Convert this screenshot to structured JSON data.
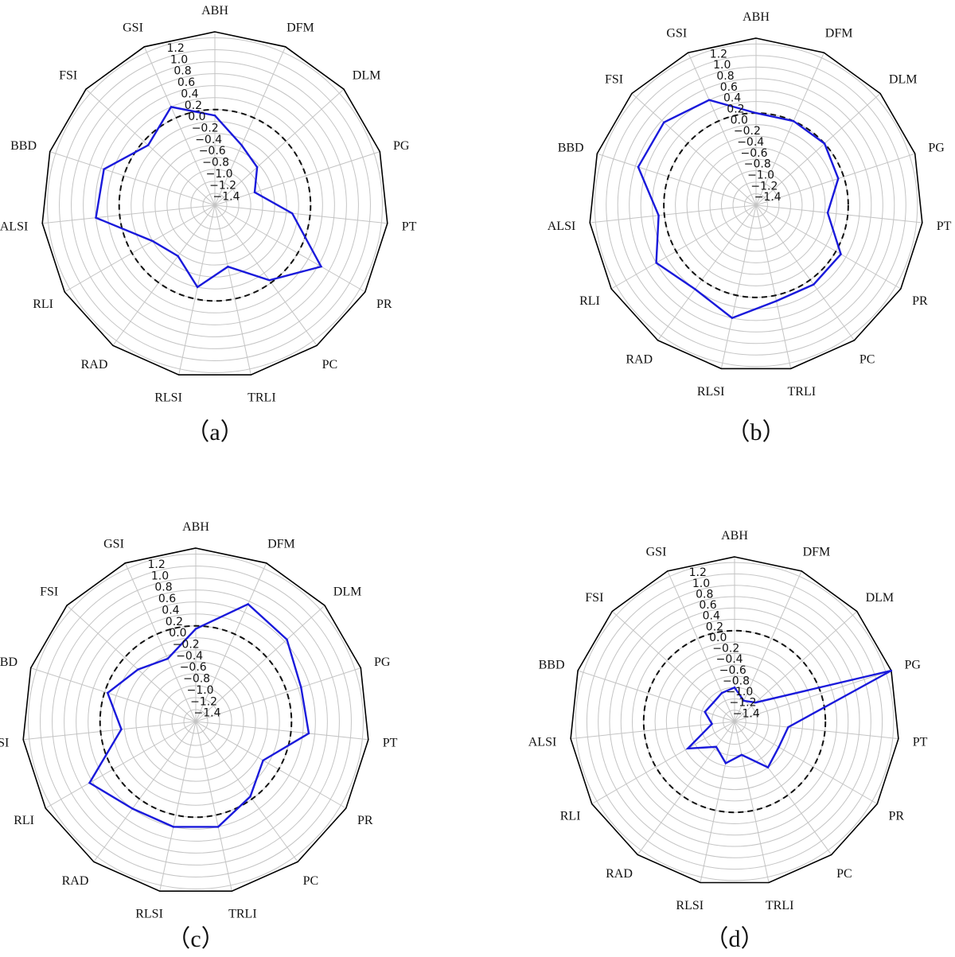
{
  "categories": [
    "ABH",
    "DFM",
    "DLM",
    "PG",
    "PT",
    "PR",
    "PC",
    "TRLI",
    "RLSI",
    "RAD",
    "RLI",
    "ALSI",
    "BBD",
    "FSI",
    "GSI"
  ],
  "radial_ticks": [
    "1.2",
    "1.0",
    "0.8",
    "0.6",
    "0.4",
    "0.2",
    "0.0",
    "−0.2",
    "−0.4",
    "−0.6",
    "−0.8",
    "−1.0",
    "−1.2",
    "−1.4"
  ],
  "series_color": "#1a1adb",
  "chart_data": [
    {
      "type": "radar",
      "panel_label": "（a）",
      "rlim": [
        -1.6,
        1.3
      ],
      "reference_circle": 0.0,
      "categories": [
        "ABH",
        "DFM",
        "DLM",
        "PG",
        "PT",
        "PR",
        "PC",
        "TRLI",
        "RLSI",
        "RAD",
        "RLI",
        "ALSI",
        "BBD",
        "FSI",
        "GSI"
      ],
      "values": [
        -0.1,
        -0.5,
        -0.65,
        -0.9,
        -0.3,
        0.45,
        -0.05,
        -0.55,
        -0.2,
        -0.55,
        -0.4,
        0.4,
        0.35,
        -0.1,
        0.2
      ]
    },
    {
      "type": "radar",
      "panel_label": "（b）",
      "rlim": [
        -1.6,
        1.3
      ],
      "reference_circle": 0.0,
      "categories": [
        "ABH",
        "DFM",
        "DLM",
        "PG",
        "PT",
        "PR",
        "PC",
        "TRLI",
        "RLSI",
        "RAD",
        "RLI",
        "ALSI",
        "BBD",
        "FSI",
        "GSI"
      ],
      "values": [
        0.0,
        0.0,
        0.0,
        -0.1,
        -0.35,
        0.1,
        0.1,
        0.1,
        0.4,
        0.2,
        0.4,
        0.1,
        0.55,
        0.55,
        0.4
      ]
    },
    {
      "type": "radar",
      "panel_label": "（c）",
      "rlim": [
        -1.6,
        1.3
      ],
      "reference_circle": 0.0,
      "categories": [
        "ABH",
        "DFM",
        "DLM",
        "PG",
        "PT",
        "PR",
        "PC",
        "TRLI",
        "RLSI",
        "RAD",
        "RLI",
        "ALSI",
        "BBD",
        "FSI",
        "GSI"
      ],
      "values": [
        -0.05,
        0.55,
        0.45,
        0.25,
        0.3,
        -0.3,
        -0.05,
        0.2,
        0.2,
        0.2,
        0.45,
        -0.35,
        -0.05,
        -0.3,
        -0.45
      ]
    },
    {
      "type": "radar",
      "panel_label": "（d）",
      "rlim": [
        -1.6,
        1.3
      ],
      "reference_circle": 0.0,
      "categories": [
        "ABH",
        "DFM",
        "DLM",
        "PG",
        "PT",
        "PR",
        "PC",
        "TRLI",
        "RLSI",
        "RAD",
        "RLI",
        "ALSI",
        "BBD",
        "FSI",
        "GSI"
      ],
      "values": [
        -1.0,
        -1.2,
        -1.1,
        1.3,
        -0.65,
        -0.7,
        -0.6,
        -1.0,
        -0.85,
        -1.05,
        -0.65,
        -1.2,
        -1.05,
        -1.1,
        -1.05
      ]
    }
  ]
}
